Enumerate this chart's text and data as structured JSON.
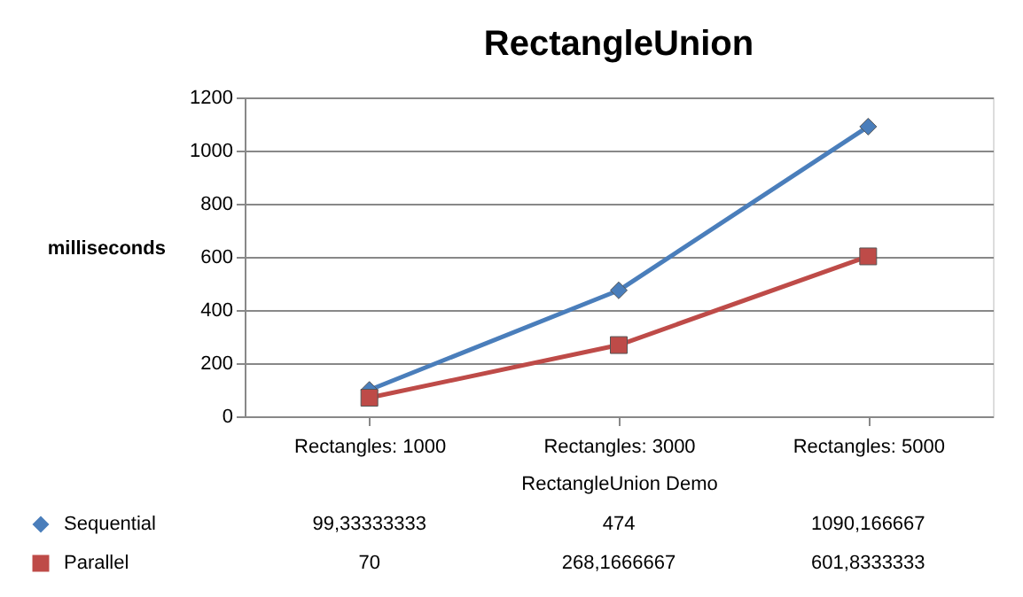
{
  "chart_data": {
    "type": "line",
    "title": "RectangleUnion",
    "ylabel": "milliseconds",
    "xlabel": "RectangleUnion Demo",
    "categories": [
      "Rectangles: 1000",
      "Rectangles: 3000",
      "Rectangles: 5000"
    ],
    "series": [
      {
        "name": "Sequential",
        "color": "#4a7ebb",
        "marker": "diamond",
        "values": [
          99.33333333,
          474,
          1090.166667
        ],
        "value_labels": [
          "99,33333333",
          "474",
          "1090,166667"
        ]
      },
      {
        "name": "Parallel",
        "color": "#be4b48",
        "marker": "square",
        "values": [
          70,
          268.1666667,
          601.8333333
        ],
        "value_labels": [
          "70",
          "268,1666667",
          "601,8333333"
        ]
      }
    ],
    "ylim": [
      0,
      1200
    ],
    "yticks": [
      0,
      200,
      400,
      600,
      800,
      1000,
      1200
    ],
    "grid": true,
    "legend": "bottom"
  }
}
